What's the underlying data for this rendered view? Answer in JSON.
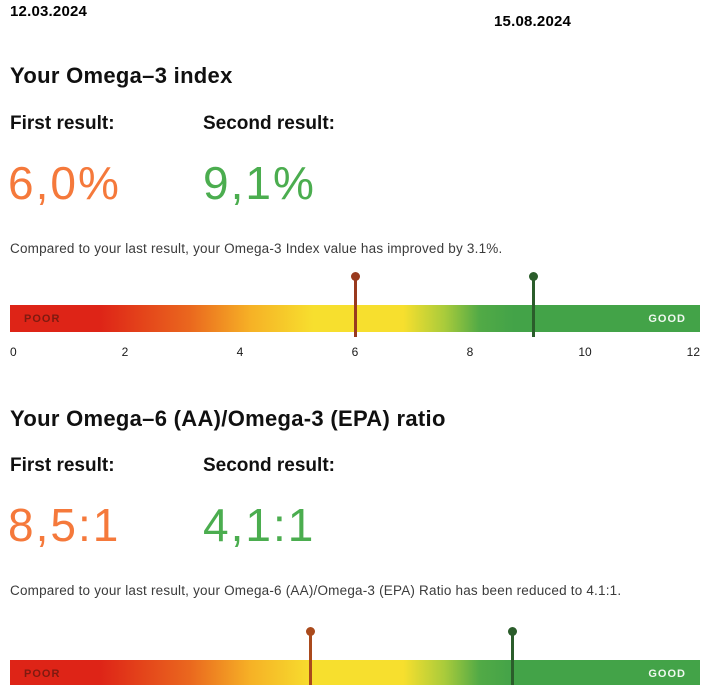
{
  "dates": {
    "first": "12.03.2024",
    "second": "15.08.2024"
  },
  "omega3_index": {
    "title": "Your Omega–3 index",
    "first_result_label": "First result:",
    "second_result_label": "Second result:",
    "first_result_value": "6,0%",
    "second_result_value": "9,1%",
    "comparison_text": "Compared to your last result, your Omega-3 Index value has improved by 3.1%."
  },
  "omega6_ratio": {
    "title": "Your Omega–6 (AA)/Omega-3 (EPA) ratio",
    "first_result_label": "First result:",
    "second_result_label": "Second result:",
    "first_result_value": "8,5:1",
    "second_result_value": "4,1:1",
    "comparison_text": "Compared to your last result, your Omega-6 (AA)/Omega-3 (EPA) Ratio has been reduced to 4.1:1."
  },
  "colors": {
    "first_result_accent": "#F5793B",
    "second_result_accent": "#4BAD4F",
    "scale_red": "#DE2417",
    "scale_yellow": "#F7DF2E",
    "scale_green": "#43A348",
    "poor_label_color": "#7E1A10",
    "good_label_color": "#FFFFFF"
  },
  "chart_data": [
    {
      "type": "gauge-scale",
      "title": "Your Omega–3 index",
      "axis": {
        "min": 0,
        "max": 12,
        "ticks": [
          "0",
          "2",
          "4",
          "6",
          "8",
          "10",
          "12"
        ]
      },
      "zone_labels": {
        "left": "POOR",
        "right": "GOOD"
      },
      "markers": [
        {
          "name": "first_result",
          "value": 6.0,
          "pct": 50.0,
          "color": "#993A1E"
        },
        {
          "name": "second_result",
          "value": 9.1,
          "pct": 75.8,
          "color": "#2B5D2B"
        }
      ]
    },
    {
      "type": "gauge-scale",
      "title": "Your Omega–6 (AA)/Omega-3 (EPA) ratio",
      "axis": {
        "ticks": []
      },
      "zone_labels": {
        "left": "POOR",
        "right": "GOOD"
      },
      "markers": [
        {
          "name": "first_result",
          "value": "8,5:1",
          "pct": 43.5,
          "color": "#AA4A1C"
        },
        {
          "name": "second_result",
          "value": "4,1:1",
          "pct": 72.8,
          "color": "#2B5D2B"
        }
      ]
    }
  ]
}
